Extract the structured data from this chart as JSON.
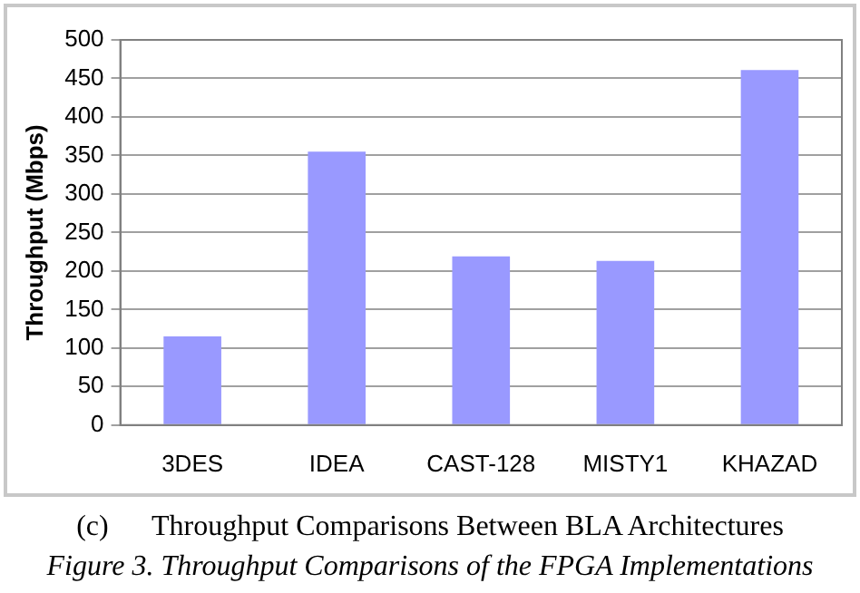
{
  "chart_data": {
    "type": "bar",
    "ylabel": "Throughput (Mbps)",
    "categories": [
      "3DES",
      "IDEA",
      "CAST-128",
      "MISTY1",
      "KHAZAD"
    ],
    "values": [
      115,
      355,
      219,
      213,
      461
    ],
    "color": "#9999ff",
    "ylim": [
      0,
      500
    ],
    "yticks": [
      0,
      50,
      100,
      150,
      200,
      250,
      300,
      350,
      400,
      450,
      500
    ],
    "grid": "y",
    "legend": false,
    "annotations": [
      "(c)      Throughput Comparisons Between BLA Architectures",
      "Figure 3. Throughput Comparisons of the FPGA Implementations"
    ]
  }
}
